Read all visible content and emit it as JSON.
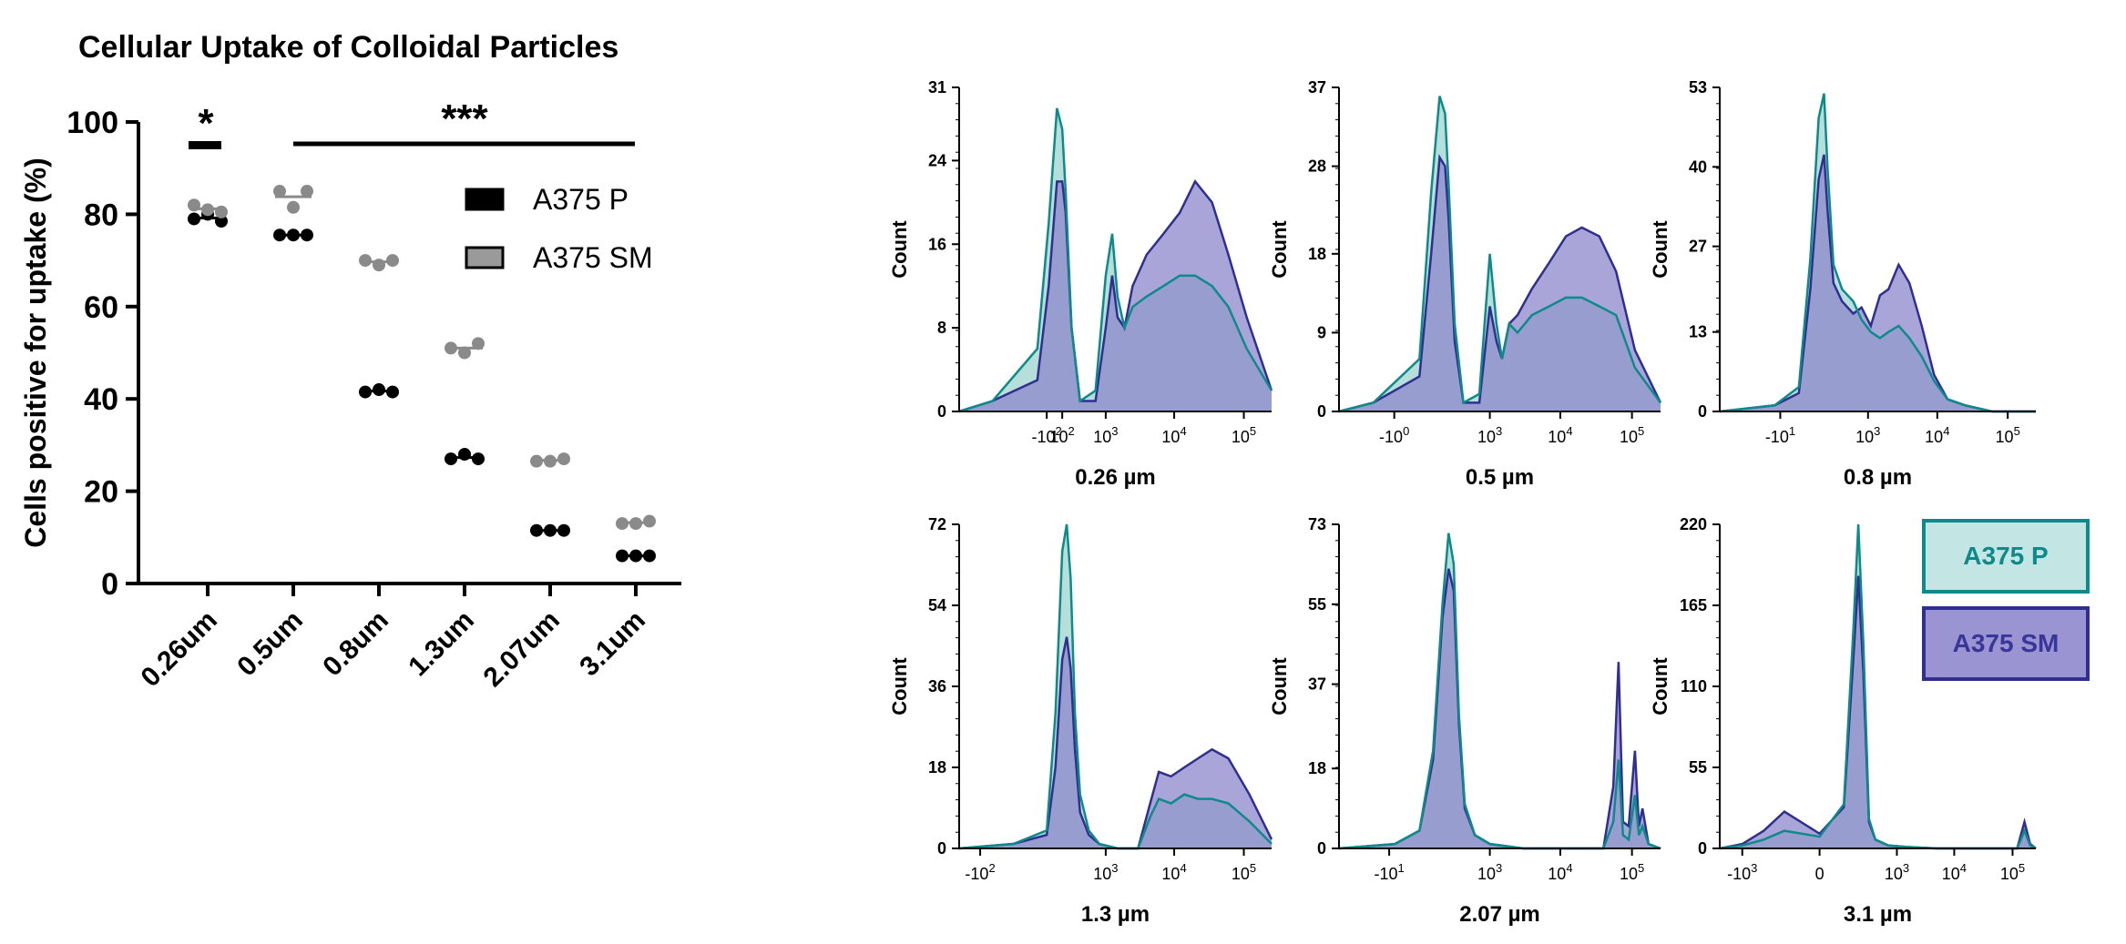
{
  "colors": {
    "p_fill": "#a9d9d6",
    "p_line": "#0e8a8a",
    "sm_fill": "#8c87cb",
    "sm_line": "#2f2f8f",
    "overlap_fill": "#6f9dbd",
    "black": "#000000",
    "gray": "#8a8a8a"
  },
  "chart_data": [
    {
      "type": "scatter",
      "title": "Cellular Uptake of Colloidal Particles",
      "ylabel": "Cells positive for uptake (%)",
      "xlabel": "",
      "categories": [
        "0.26um",
        "0.5um",
        "0.8um",
        "1.3um",
        "2.07um",
        "3.1um"
      ],
      "ylim": [
        0,
        100
      ],
      "yticks": [
        "0",
        "20",
        "40",
        "60",
        "80",
        "100"
      ],
      "series": [
        {
          "name": "A375 P",
          "color": "#000000",
          "points": [
            [
              79,
              80,
              78.5
            ],
            [
              75.5,
              75.5,
              75.5
            ],
            [
              41.5,
              42,
              41.5
            ],
            [
              27,
              28,
              27
            ],
            [
              11.5,
              11.5,
              11.5
            ],
            [
              6,
              6,
              6
            ]
          ],
          "means": [
            79.2,
            75.5,
            41.7,
            27.3,
            11.5,
            6
          ]
        },
        {
          "name": "A375 SM",
          "color": "#8a8a8a",
          "points": [
            [
              82,
              81,
              80.5
            ],
            [
              85,
              81.5,
              85
            ],
            [
              70,
              69,
              70
            ],
            [
              51,
              50,
              52
            ],
            [
              26.5,
              26.5,
              27
            ],
            [
              13,
              13,
              13.5
            ]
          ],
          "means": [
            81.2,
            83.8,
            69.7,
            51,
            26.7,
            13.2
          ]
        }
      ],
      "legend": {
        "position": "top-right",
        "entries": [
          "A375 P",
          "A375 SM"
        ]
      },
      "annotations": [
        {
          "text": "*",
          "spans": [
            "0.26um",
            "0.26um"
          ]
        },
        {
          "text": "***",
          "spans": [
            "0.5um",
            "3.1um"
          ]
        }
      ]
    },
    {
      "type": "area",
      "title": "0.26 µm",
      "ylabel": "Count",
      "yticks": [
        "0",
        "8",
        "16",
        "24",
        "31"
      ],
      "ymax": 31,
      "xticks": [
        {
          "label": "-10",
          "sup": "2",
          "x": 100
        },
        {
          "label": "10",
          "sup": "2",
          "x": 200
        },
        {
          "label": "10",
          "sup": "3",
          "x": 1000
        },
        {
          "label": "10",
          "sup": "4",
          "x": 10000
        },
        {
          "label": "10",
          "sup": "5",
          "x": 100000
        }
      ],
      "xrange": [
        -250,
        250000
      ],
      "series": [
        {
          "name": "A375 P",
          "x": [
            -250,
            -50,
            60,
            110,
            160,
            200,
            230,
            290,
            400,
            700,
            1000,
            1250,
            1500,
            1900,
            2500,
            4000,
            7000,
            12000,
            20000,
            35000,
            60000,
            110000,
            250000
          ],
          "y": [
            0,
            1,
            6,
            18,
            29,
            27,
            21,
            8,
            1,
            2,
            13,
            17,
            11,
            8,
            10,
            11,
            12,
            13,
            13,
            12,
            10,
            6,
            2
          ]
        },
        {
          "name": "A375 SM",
          "x": [
            -250,
            -50,
            60,
            110,
            160,
            200,
            230,
            290,
            400,
            700,
            1000,
            1250,
            1500,
            1900,
            2500,
            4000,
            7000,
            12000,
            20000,
            35000,
            60000,
            110000,
            250000
          ],
          "y": [
            0,
            1,
            3,
            12,
            22,
            22,
            19,
            8,
            1,
            1,
            8,
            13,
            9,
            8,
            12,
            15,
            17,
            19,
            22,
            20,
            15,
            9,
            2
          ]
        }
      ]
    },
    {
      "type": "area",
      "title": "0.5 µm",
      "ylabel": "Count",
      "yticks": [
        "0",
        "9",
        "18",
        "28",
        "37"
      ],
      "ymax": 37,
      "xticks": [
        {
          "label": "-10",
          "sup": "0",
          "x": -1
        },
        {
          "label": "10",
          "sup": "3",
          "x": 1000
        },
        {
          "label": "10",
          "sup": "4",
          "x": 10000
        },
        {
          "label": "10",
          "sup": "5",
          "x": 100000
        }
      ],
      "xrange": [
        -250,
        250000
      ],
      "series": [
        {
          "name": "A375 P",
          "x": [
            -250,
            -50,
            60,
            110,
            160,
            200,
            230,
            290,
            400,
            700,
            1000,
            1250,
            1500,
            1900,
            2500,
            4000,
            7000,
            12000,
            20000,
            35000,
            60000,
            110000,
            250000
          ],
          "y": [
            0,
            1,
            6,
            25,
            36,
            34,
            26,
            10,
            1,
            2,
            18,
            10,
            6,
            10,
            9,
            11,
            12,
            13,
            13,
            12,
            11,
            5,
            1
          ]
        },
        {
          "name": "A375 SM",
          "x": [
            -250,
            -50,
            60,
            110,
            160,
            200,
            230,
            290,
            400,
            700,
            1000,
            1250,
            1500,
            1900,
            2500,
            4000,
            7000,
            12000,
            20000,
            35000,
            60000,
            110000,
            250000
          ],
          "y": [
            0,
            1,
            4,
            18,
            29,
            28,
            22,
            8,
            1,
            1,
            12,
            8,
            6,
            10,
            11,
            14,
            17,
            20,
            21,
            20,
            16,
            7,
            1
          ]
        }
      ]
    },
    {
      "type": "area",
      "title": "0.8 µm",
      "ylabel": "Count",
      "yticks": [
        "0",
        "13",
        "27",
        "40",
        "53"
      ],
      "ymax": 53,
      "xticks": [
        {
          "label": "-10",
          "sup": "1",
          "x": 10
        },
        {
          "label": "10",
          "sup": "3",
          "x": 1000
        },
        {
          "label": "10",
          "sup": "4",
          "x": 10000
        },
        {
          "label": "10",
          "sup": "5",
          "x": 100000
        }
      ],
      "xrange": [
        -250,
        250000
      ],
      "series": [
        {
          "name": "A375 P",
          "x": [
            -250,
            0,
            60,
            110,
            160,
            200,
            230,
            290,
            400,
            600,
            800,
            1100,
            1500,
            2000,
            2800,
            4000,
            6000,
            9000,
            14000,
            25000,
            60000,
            250000
          ],
          "y": [
            0,
            1,
            4,
            25,
            48,
            52,
            40,
            24,
            20,
            18,
            15,
            13,
            12,
            13,
            14,
            12,
            9,
            5,
            2,
            1,
            0,
            0
          ]
        },
        {
          "name": "A375 SM",
          "x": [
            -250,
            0,
            60,
            110,
            160,
            200,
            230,
            290,
            400,
            600,
            800,
            1100,
            1500,
            2000,
            2800,
            4000,
            6000,
            9000,
            14000,
            25000,
            60000,
            250000
          ],
          "y": [
            0,
            1,
            3,
            20,
            38,
            42,
            33,
            21,
            18,
            16,
            17,
            14,
            19,
            20,
            24,
            21,
            14,
            6,
            2,
            1,
            0,
            0
          ]
        }
      ]
    },
    {
      "type": "area",
      "title": "1.3 µm",
      "ylabel": "Count",
      "yticks": [
        "0",
        "18",
        "36",
        "54",
        "72"
      ],
      "ymax": 72,
      "xticks": [
        {
          "label": "-10",
          "sup": "2",
          "x": -100
        },
        {
          "label": "10",
          "sup": "3",
          "x": 1000
        },
        {
          "label": "10",
          "sup": "4",
          "x": 10000
        },
        {
          "label": "10",
          "sup": "5",
          "x": 100000
        }
      ],
      "xrange": [
        -250,
        250000
      ],
      "series": [
        {
          "name": "A375 P",
          "x": [
            -250,
            0,
            100,
            150,
            200,
            240,
            280,
            330,
            400,
            550,
            800,
            1500,
            3000,
            4500,
            6000,
            9000,
            14000,
            22000,
            35000,
            60000,
            120000,
            250000
          ],
          "y": [
            0,
            1,
            4,
            30,
            66,
            72,
            60,
            30,
            12,
            4,
            1,
            0,
            0,
            7,
            11,
            10,
            12,
            11,
            11,
            10,
            6,
            1
          ]
        },
        {
          "name": "A375 SM",
          "x": [
            -250,
            0,
            100,
            150,
            200,
            240,
            280,
            330,
            400,
            550,
            800,
            1500,
            3000,
            4500,
            6000,
            9000,
            14000,
            22000,
            35000,
            60000,
            120000,
            250000
          ],
          "y": [
            0,
            1,
            3,
            18,
            42,
            47,
            40,
            22,
            8,
            3,
            1,
            0,
            0,
            10,
            17,
            16,
            18,
            20,
            22,
            20,
            12,
            2
          ]
        }
      ]
    },
    {
      "type": "area",
      "title": "2.07 µm",
      "ylabel": "Count",
      "yticks": [
        "0",
        "18",
        "37",
        "55",
        "73"
      ],
      "ymax": 73,
      "xticks": [
        {
          "label": "-10",
          "sup": "1",
          "x": -10
        },
        {
          "label": "10",
          "sup": "3",
          "x": 1000
        },
        {
          "label": "10",
          "sup": "4",
          "x": 10000
        },
        {
          "label": "10",
          "sup": "5",
          "x": 100000
        }
      ],
      "xrange": [
        -250,
        250000
      ],
      "series": [
        {
          "name": "A375 P",
          "x": [
            -250,
            0,
            60,
            120,
            180,
            230,
            280,
            340,
            420,
            600,
            1000,
            3000,
            10000,
            40000,
            55000,
            65000,
            75000,
            90000,
            110000,
            125000,
            140000,
            170000,
            250000
          ],
          "y": [
            0,
            1,
            4,
            22,
            55,
            71,
            64,
            30,
            10,
            3,
            1,
            0,
            0,
            0,
            6,
            20,
            3,
            2,
            12,
            3,
            5,
            1,
            0
          ]
        },
        {
          "name": "A375 SM",
          "x": [
            -250,
            0,
            60,
            120,
            180,
            230,
            280,
            340,
            420,
            600,
            1000,
            3000,
            10000,
            40000,
            55000,
            65000,
            75000,
            90000,
            110000,
            125000,
            140000,
            170000,
            250000
          ],
          "y": [
            0,
            1,
            4,
            20,
            52,
            63,
            58,
            28,
            9,
            3,
            1,
            0,
            0,
            0,
            14,
            42,
            6,
            5,
            22,
            5,
            9,
            1,
            0
          ]
        }
      ]
    },
    {
      "type": "area",
      "title": "3.1 µm",
      "ylabel": "Count",
      "yticks": [
        "0",
        "55",
        "110",
        "165",
        "220"
      ],
      "ymax": 220,
      "xticks": [
        {
          "label": "-10",
          "sup": "3",
          "x": -1000
        },
        {
          "label": "0",
          "sup": "",
          "x": 0
        },
        {
          "label": "10",
          "sup": "3",
          "x": 1000
        },
        {
          "label": "10",
          "sup": "4",
          "x": 10000
        },
        {
          "label": "10",
          "sup": "5",
          "x": 100000
        }
      ],
      "xrange": [
        -2500,
        250000
      ],
      "series": [
        {
          "name": "A375 P",
          "x": [
            -2500,
            -1000,
            -400,
            -150,
            0,
            80,
            140,
            180,
            230,
            300,
            400,
            700,
            1500,
            5000,
            60000,
            120000,
            160000,
            200000,
            250000
          ],
          "y": [
            0,
            2,
            6,
            12,
            8,
            30,
            150,
            220,
            140,
            20,
            6,
            2,
            1,
            0,
            0,
            0,
            12,
            2,
            0
          ]
        },
        {
          "name": "A375 SM",
          "x": [
            -2500,
            -1000,
            -400,
            -150,
            0,
            80,
            140,
            180,
            230,
            300,
            400,
            700,
            1500,
            5000,
            60000,
            120000,
            160000,
            200000,
            250000
          ],
          "y": [
            0,
            3,
            12,
            25,
            10,
            28,
            130,
            185,
            120,
            18,
            6,
            2,
            1,
            0,
            0,
            0,
            18,
            3,
            0
          ]
        }
      ]
    }
  ],
  "legend_boxes": [
    "A375 P",
    "A375 SM"
  ]
}
